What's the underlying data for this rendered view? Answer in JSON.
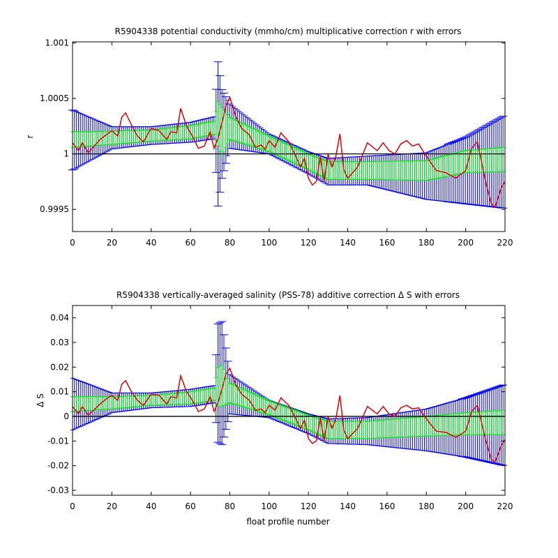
{
  "colors": {
    "blue_errorbars": "#0000ff",
    "green_errorbars": "#00ee00",
    "fit_line": "#dd0000",
    "zero_line": "#000000"
  },
  "chart_data": [
    {
      "type": "line",
      "title": "R5904338 potential conductivity (mmho/cm) multiplicative correction r with errors",
      "xlabel": "",
      "ylabel": "r",
      "xlim": [
        0,
        220
      ],
      "ylim": [
        0.9993,
        1.00101
      ],
      "xticks": [
        0,
        20,
        40,
        60,
        80,
        100,
        120,
        140,
        160,
        180,
        200,
        220
      ],
      "xtick_labels": [
        "0",
        "20",
        "40",
        "60",
        "80",
        "100",
        "120",
        "140",
        "160",
        "180",
        "200",
        "220"
      ],
      "yticks": [
        0.9995,
        1.0,
        1.0005,
        1.001
      ],
      "ytick_labels": [
        "0.9995",
        "1",
        "1.0005",
        "1.001"
      ],
      "reference_line": 1.0,
      "errorbar_series": [
        {
          "color": "blue",
          "x": [
            0,
            20,
            40,
            60,
            72,
            74,
            76,
            80,
            100,
            120,
            130,
            150,
            180,
            200,
            220
          ],
          "center": [
            1.000125,
            1.000145,
            1.000165,
            1.000195,
            1.000235,
            1.00018,
            1.00018,
            1.00025,
            1.00009,
            0.99992,
            0.99984,
            0.99985,
            0.9998,
            0.99985,
            0.99993
          ],
          "half": [
            0.00027,
            0.0001,
            8e-05,
            9e-05,
            0.0001,
            0.00065,
            0.0004,
            0.0002,
            9e-05,
            0.0001,
            0.00012,
            0.00013,
            0.00021,
            0.0003,
            0.00042
          ]
        },
        {
          "color": "green",
          "x": [
            0,
            20,
            40,
            60,
            72,
            74,
            76,
            80,
            100,
            120,
            130,
            150,
            180,
            200,
            220
          ],
          "center": [
            1.00013,
            1.000145,
            1.000165,
            1.000195,
            1.000235,
            1.00027,
            1.0002,
            1.00023,
            1.00009,
            0.99993,
            0.99985,
            0.99985,
            0.99985,
            0.99993,
            0.99995
          ],
          "half": [
            7e-05,
            6e-05,
            5e-05,
            6e-05,
            6e-05,
            0.0002,
            0.00022,
            0.0001,
            7e-05,
            7e-05,
            8e-05,
            8e-05,
            9e-05,
            0.0001,
            0.00011
          ]
        }
      ],
      "line_series": {
        "color": "red",
        "x": [
          0,
          3,
          5,
          8,
          10,
          14,
          17,
          20,
          23,
          25,
          27,
          30,
          33,
          36,
          40,
          44,
          48,
          50,
          53,
          55,
          58,
          61,
          64,
          67,
          70,
          72,
          74,
          76,
          78,
          80,
          83,
          86,
          90,
          93,
          96,
          98,
          100,
          103,
          106,
          110,
          113,
          116,
          118,
          120,
          122,
          124,
          126,
          128,
          130,
          132,
          134,
          136,
          138,
          140,
          145,
          150,
          155,
          158,
          161,
          164,
          167,
          170,
          173,
          176,
          180,
          185,
          190,
          195,
          200,
          203,
          206,
          210,
          213,
          215,
          218,
          220
        ],
        "y": [
          1.0001,
          1.00003,
          1.0001,
          1.00001,
          1.00005,
          1.00013,
          1.00017,
          1.00021,
          1.00016,
          1.00033,
          1.00037,
          1.00026,
          1.00016,
          1.00011,
          1.00023,
          1.00021,
          1.00013,
          1.0002,
          1.00019,
          1.00041,
          1.00025,
          1.00016,
          1.00005,
          1.00007,
          1.0002,
          1.00005,
          1.00014,
          1.00028,
          1.00043,
          1.00051,
          1.00034,
          1.00023,
          1.00017,
          1.00006,
          1.00008,
          1.00004,
          1.00012,
          1.00006,
          1.00019,
          1.00011,
          1.0,
          0.99988,
          0.99996,
          0.99978,
          0.99972,
          0.99975,
          0.99998,
          0.99975,
          1.0,
          0.99988,
          0.99998,
          1.00018,
          0.99986,
          0.99978,
          0.99988,
          1.0001,
          1.00003,
          1.0001,
          1.00003,
          1.0,
          1.00009,
          1.00012,
          1.00007,
          1.00009,
          0.99998,
          0.99985,
          0.99983,
          0.99978,
          0.99985,
          1.00005,
          1.00011,
          0.99976,
          0.99955,
          0.99952,
          0.99969,
          0.99975
        ]
      }
    },
    {
      "type": "line",
      "title": "R5904338 vertically-averaged salinity (PSS-78) additive correction Δ S with errors",
      "xlabel": "float profile number",
      "ylabel": "Δ S",
      "xlim": [
        0,
        220
      ],
      "ylim": [
        -0.032,
        0.045
      ],
      "xticks": [
        0,
        20,
        40,
        60,
        80,
        100,
        120,
        140,
        160,
        180,
        200,
        220
      ],
      "xtick_labels": [
        "0",
        "20",
        "40",
        "60",
        "80",
        "100",
        "120",
        "140",
        "160",
        "180",
        "200",
        "220"
      ],
      "yticks": [
        -0.03,
        -0.02,
        -0.01,
        0,
        0.01,
        0.02,
        0.03,
        0.04
      ],
      "ytick_labels": [
        "-0.03",
        "-0.02",
        "-0.01",
        "0",
        "0.01",
        "0.02",
        "0.03",
        "0.04"
      ],
      "reference_line": 0,
      "errorbar_series": [
        {
          "color": "blue",
          "x": [
            0,
            20,
            40,
            60,
            72,
            74,
            76,
            80,
            100,
            120,
            130,
            150,
            180,
            200,
            220
          ],
          "center": [
            0.005,
            0.0055,
            0.0065,
            0.0075,
            0.009,
            0.0135,
            0.0135,
            0.009,
            0.003,
            -0.003,
            -0.006,
            -0.006,
            -0.0055,
            -0.0045,
            -0.0035
          ],
          "half": [
            0.0105,
            0.004,
            0.003,
            0.0035,
            0.0035,
            0.024,
            0.025,
            0.008,
            0.0035,
            0.004,
            0.005,
            0.0055,
            0.0085,
            0.012,
            0.0165
          ]
        },
        {
          "color": "green",
          "x": [
            0,
            20,
            40,
            60,
            72,
            74,
            76,
            80,
            100,
            120,
            130,
            150,
            180,
            200,
            220
          ],
          "center": [
            0.005,
            0.0055,
            0.0065,
            0.0075,
            0.009,
            0.012,
            0.0125,
            0.0095,
            0.0035,
            -0.0025,
            -0.0055,
            -0.0055,
            -0.004,
            -0.003,
            -0.0025
          ],
          "half": [
            0.003,
            0.0025,
            0.002,
            0.0025,
            0.0025,
            0.008,
            0.0085,
            0.004,
            0.0028,
            0.003,
            0.0035,
            0.0035,
            0.004,
            0.0045,
            0.005
          ]
        }
      ],
      "line_series": {
        "color": "red",
        "x": [
          0,
          3,
          5,
          8,
          10,
          14,
          17,
          20,
          23,
          25,
          27,
          30,
          33,
          36,
          40,
          44,
          48,
          50,
          53,
          55,
          58,
          61,
          64,
          67,
          70,
          72,
          74,
          76,
          78,
          80,
          83,
          86,
          90,
          93,
          96,
          98,
          100,
          103,
          106,
          110,
          113,
          116,
          118,
          120,
          122,
          124,
          126,
          128,
          130,
          132,
          134,
          136,
          138,
          140,
          145,
          150,
          155,
          158,
          161,
          164,
          167,
          170,
          173,
          176,
          180,
          185,
          190,
          195,
          200,
          203,
          206,
          210,
          213,
          215,
          218,
          220
        ],
        "y": [
          0.004,
          0.001,
          0.004,
          0.0005,
          0.002,
          0.005,
          0.007,
          0.0085,
          0.0065,
          0.013,
          0.0145,
          0.01,
          0.0065,
          0.0045,
          0.009,
          0.0085,
          0.005,
          0.008,
          0.0075,
          0.0165,
          0.01,
          0.0065,
          0.002,
          0.003,
          0.008,
          0.002,
          0.0055,
          0.011,
          0.017,
          0.0195,
          0.013,
          0.009,
          0.0065,
          0.0025,
          0.003,
          0.0015,
          0.0045,
          0.0025,
          0.0075,
          0.0045,
          0.0,
          -0.005,
          -0.0015,
          -0.009,
          -0.011,
          -0.01,
          -0.0005,
          -0.01,
          0.0,
          -0.005,
          -0.001,
          0.0085,
          -0.0055,
          -0.009,
          -0.005,
          0.004,
          0.001,
          0.004,
          0.001,
          0.0,
          0.0035,
          0.0045,
          0.003,
          0.0035,
          -0.001,
          -0.006,
          -0.0065,
          -0.0085,
          -0.006,
          0.002,
          0.0045,
          -0.009,
          -0.0175,
          -0.0185,
          -0.012,
          -0.0095
        ]
      }
    }
  ]
}
